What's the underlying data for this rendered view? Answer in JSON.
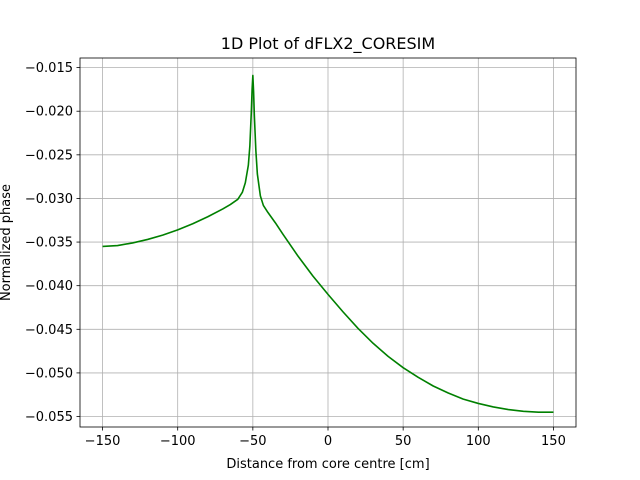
{
  "chart_data": {
    "type": "line",
    "title": "1D Plot of dFLX2_CORESIM",
    "xlabel": "Distance from core centre [cm]",
    "ylabel": "Normalized phase",
    "xlim": [
      -165,
      165
    ],
    "ylim": [
      -0.0562,
      -0.0139
    ],
    "xticks": [
      -150,
      -100,
      -50,
      0,
      50,
      100,
      150
    ],
    "xtick_labels": [
      "−150",
      "−100",
      "−50",
      "0",
      "50",
      "100",
      "150"
    ],
    "yticks": [
      -0.055,
      -0.05,
      -0.045,
      -0.04,
      -0.035,
      -0.03,
      -0.025,
      -0.02,
      -0.015
    ],
    "ytick_labels": [
      "−0.055",
      "−0.050",
      "−0.045",
      "−0.040",
      "−0.035",
      "−0.030",
      "−0.025",
      "−0.020",
      "−0.015"
    ],
    "grid": true,
    "series": [
      {
        "color": "#008000",
        "x": [
          -150,
          -140,
          -130,
          -120,
          -110,
          -100,
          -90,
          -80,
          -70,
          -65,
          -60,
          -57,
          -55,
          -53,
          -52,
          -51,
          -50.5,
          -50,
          -49.5,
          -49,
          -48,
          -47,
          -45,
          -43,
          -40,
          -35,
          -30,
          -20,
          -10,
          0,
          10,
          20,
          30,
          40,
          50,
          60,
          70,
          80,
          90,
          100,
          110,
          120,
          130,
          140,
          150
        ],
        "y": [
          -0.0355,
          -0.0354,
          -0.0351,
          -0.0347,
          -0.0342,
          -0.0336,
          -0.0329,
          -0.0321,
          -0.0312,
          -0.0307,
          -0.0301,
          -0.0293,
          -0.0282,
          -0.0262,
          -0.024,
          -0.02,
          -0.0175,
          -0.0159,
          -0.0178,
          -0.0205,
          -0.0245,
          -0.0272,
          -0.0297,
          -0.0308,
          -0.0316,
          -0.0328,
          -0.0341,
          -0.0366,
          -0.0389,
          -0.041,
          -0.043,
          -0.0449,
          -0.0466,
          -0.0481,
          -0.0494,
          -0.0505,
          -0.0515,
          -0.0523,
          -0.053,
          -0.0535,
          -0.0539,
          -0.0542,
          -0.0544,
          -0.0545,
          -0.0545
        ]
      }
    ]
  }
}
